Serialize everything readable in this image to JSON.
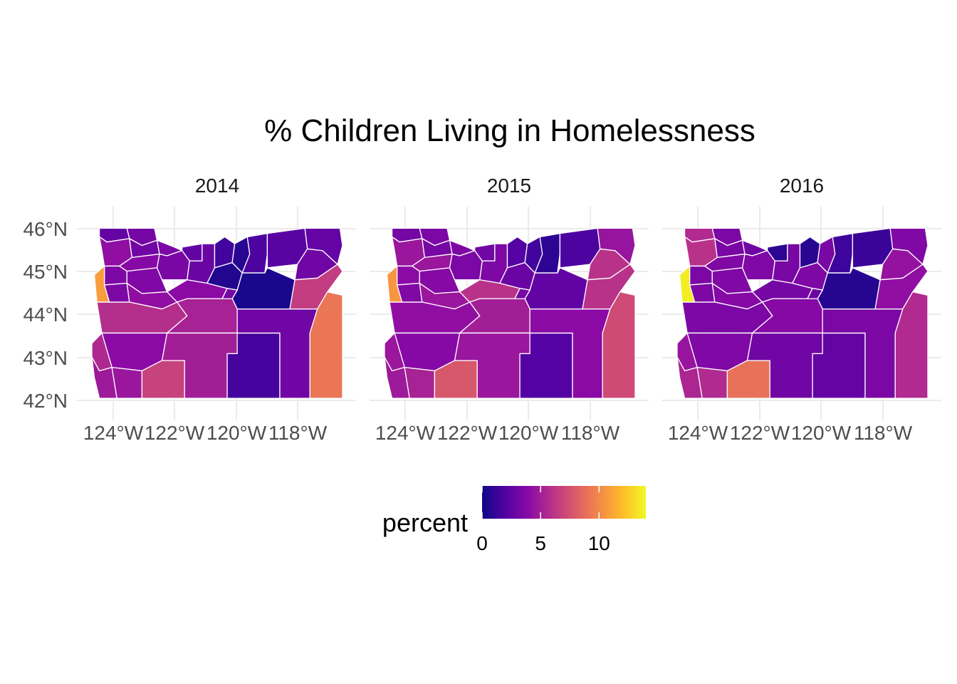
{
  "chart_data": {
    "type": "choropleth",
    "title": "% Children Living in Homelessness",
    "xlabel": "",
    "ylabel": "",
    "x_ticks": [
      "124°W",
      "122°W",
      "120°W",
      "118°W"
    ],
    "y_ticks": [
      "46°N",
      "45°N",
      "44°N",
      "43°N",
      "42°N"
    ],
    "lon_range": [
      -124.6,
      -116.4
    ],
    "lat_range": [
      41.95,
      46.3
    ],
    "grid": true,
    "legend": {
      "title": "percent",
      "position": "bottom",
      "ticks": [
        "0",
        "5",
        "10"
      ],
      "range": [
        0,
        14
      ],
      "palette": "plasma",
      "colors": [
        "#0d0887",
        "#5402a3",
        "#8b0aa5",
        "#b93289",
        "#db5c68",
        "#f48849",
        "#febc2a",
        "#f0f921"
      ]
    },
    "panels": [
      {
        "label": "2014",
        "values": {
          "Clatsop": 2.6,
          "Columbia": 3.2,
          "Tillamook": 4.2,
          "Washington": 3.0,
          "Multnomah": 3.5,
          "Yamhill": 3.8,
          "Clackamas": 3.3,
          "Hood River": 2.5,
          "Wasco": 2.8,
          "Sherman": 1.5,
          "Gilliam": 0.8,
          "Morrow": 1.8,
          "Umatilla": 2.2,
          "Union": 3.0,
          "Wallowa": 2.6,
          "Polk": 3.5,
          "Marion": 3.6,
          "Lincoln": 10.8,
          "Benton": 3.4,
          "Linn": 4.2,
          "Jefferson": 4.0,
          "Wheeler": 0.6,
          "Grant": 0.4,
          "Baker": 6.5,
          "Lane": 5.8,
          "Deschutes": 5.2,
          "Crook": 3.2,
          "Douglas": 4.0,
          "Coos": 5.5,
          "Curry": 4.8,
          "Josephine": 4.6,
          "Jackson": 6.8,
          "Klamath": 5.0,
          "Lake": 1.6,
          "Harney": 3.0,
          "Malheur": 9.2
        }
      },
      {
        "label": "2015",
        "values": {
          "Clatsop": 3.2,
          "Columbia": 3.4,
          "Tillamook": 4.6,
          "Washington": 3.2,
          "Multnomah": 3.5,
          "Yamhill": 4.6,
          "Clackamas": 3.4,
          "Hood River": 3.0,
          "Wasco": 3.5,
          "Sherman": 2.0,
          "Gilliam": 1.5,
          "Morrow": 0.9,
          "Umatilla": 1.8,
          "Union": 6.0,
          "Wallowa": 4.5,
          "Polk": 4.0,
          "Marion": 3.8,
          "Lincoln": 10.5,
          "Benton": 3.6,
          "Linn": 4.6,
          "Jefferson": 6.0,
          "Wheeler": 2.8,
          "Grant": 2.5,
          "Baker": 6.0,
          "Lane": 4.2,
          "Deschutes": 5.0,
          "Crook": 3.2,
          "Douglas": 3.8,
          "Coos": 4.6,
          "Curry": 4.8,
          "Josephine": 5.2,
          "Jackson": 7.8,
          "Klamath": 4.6,
          "Lake": 2.0,
          "Harney": 4.0,
          "Malheur": 7.2
        }
      },
      {
        "label": "2016",
        "values": {
          "Clatsop": 5.6,
          "Columbia": 3.4,
          "Tillamook": 6.0,
          "Washington": 3.3,
          "Multnomah": 3.0,
          "Yamhill": 3.6,
          "Clackamas": 3.6,
          "Hood River": 0.9,
          "Wasco": 3.3,
          "Sherman": 0.8,
          "Gilliam": 3.3,
          "Morrow": 1.4,
          "Umatilla": 1.3,
          "Union": 4.4,
          "Wallowa": 3.6,
          "Polk": 3.4,
          "Marion": 3.6,
          "Lincoln": 13.6,
          "Benton": 3.5,
          "Linn": 3.8,
          "Jefferson": 3.2,
          "Wheeler": 3.5,
          "Grant": 0.7,
          "Baker": 4.2,
          "Lane": 3.4,
          "Deschutes": 3.8,
          "Crook": 2.8,
          "Douglas": 3.6,
          "Coos": 4.5,
          "Curry": 5.4,
          "Josephine": 5.6,
          "Jackson": 9.0,
          "Klamath": 3.0,
          "Lake": 2.6,
          "Harney": 3.4,
          "Malheur": 5.6
        }
      }
    ]
  }
}
